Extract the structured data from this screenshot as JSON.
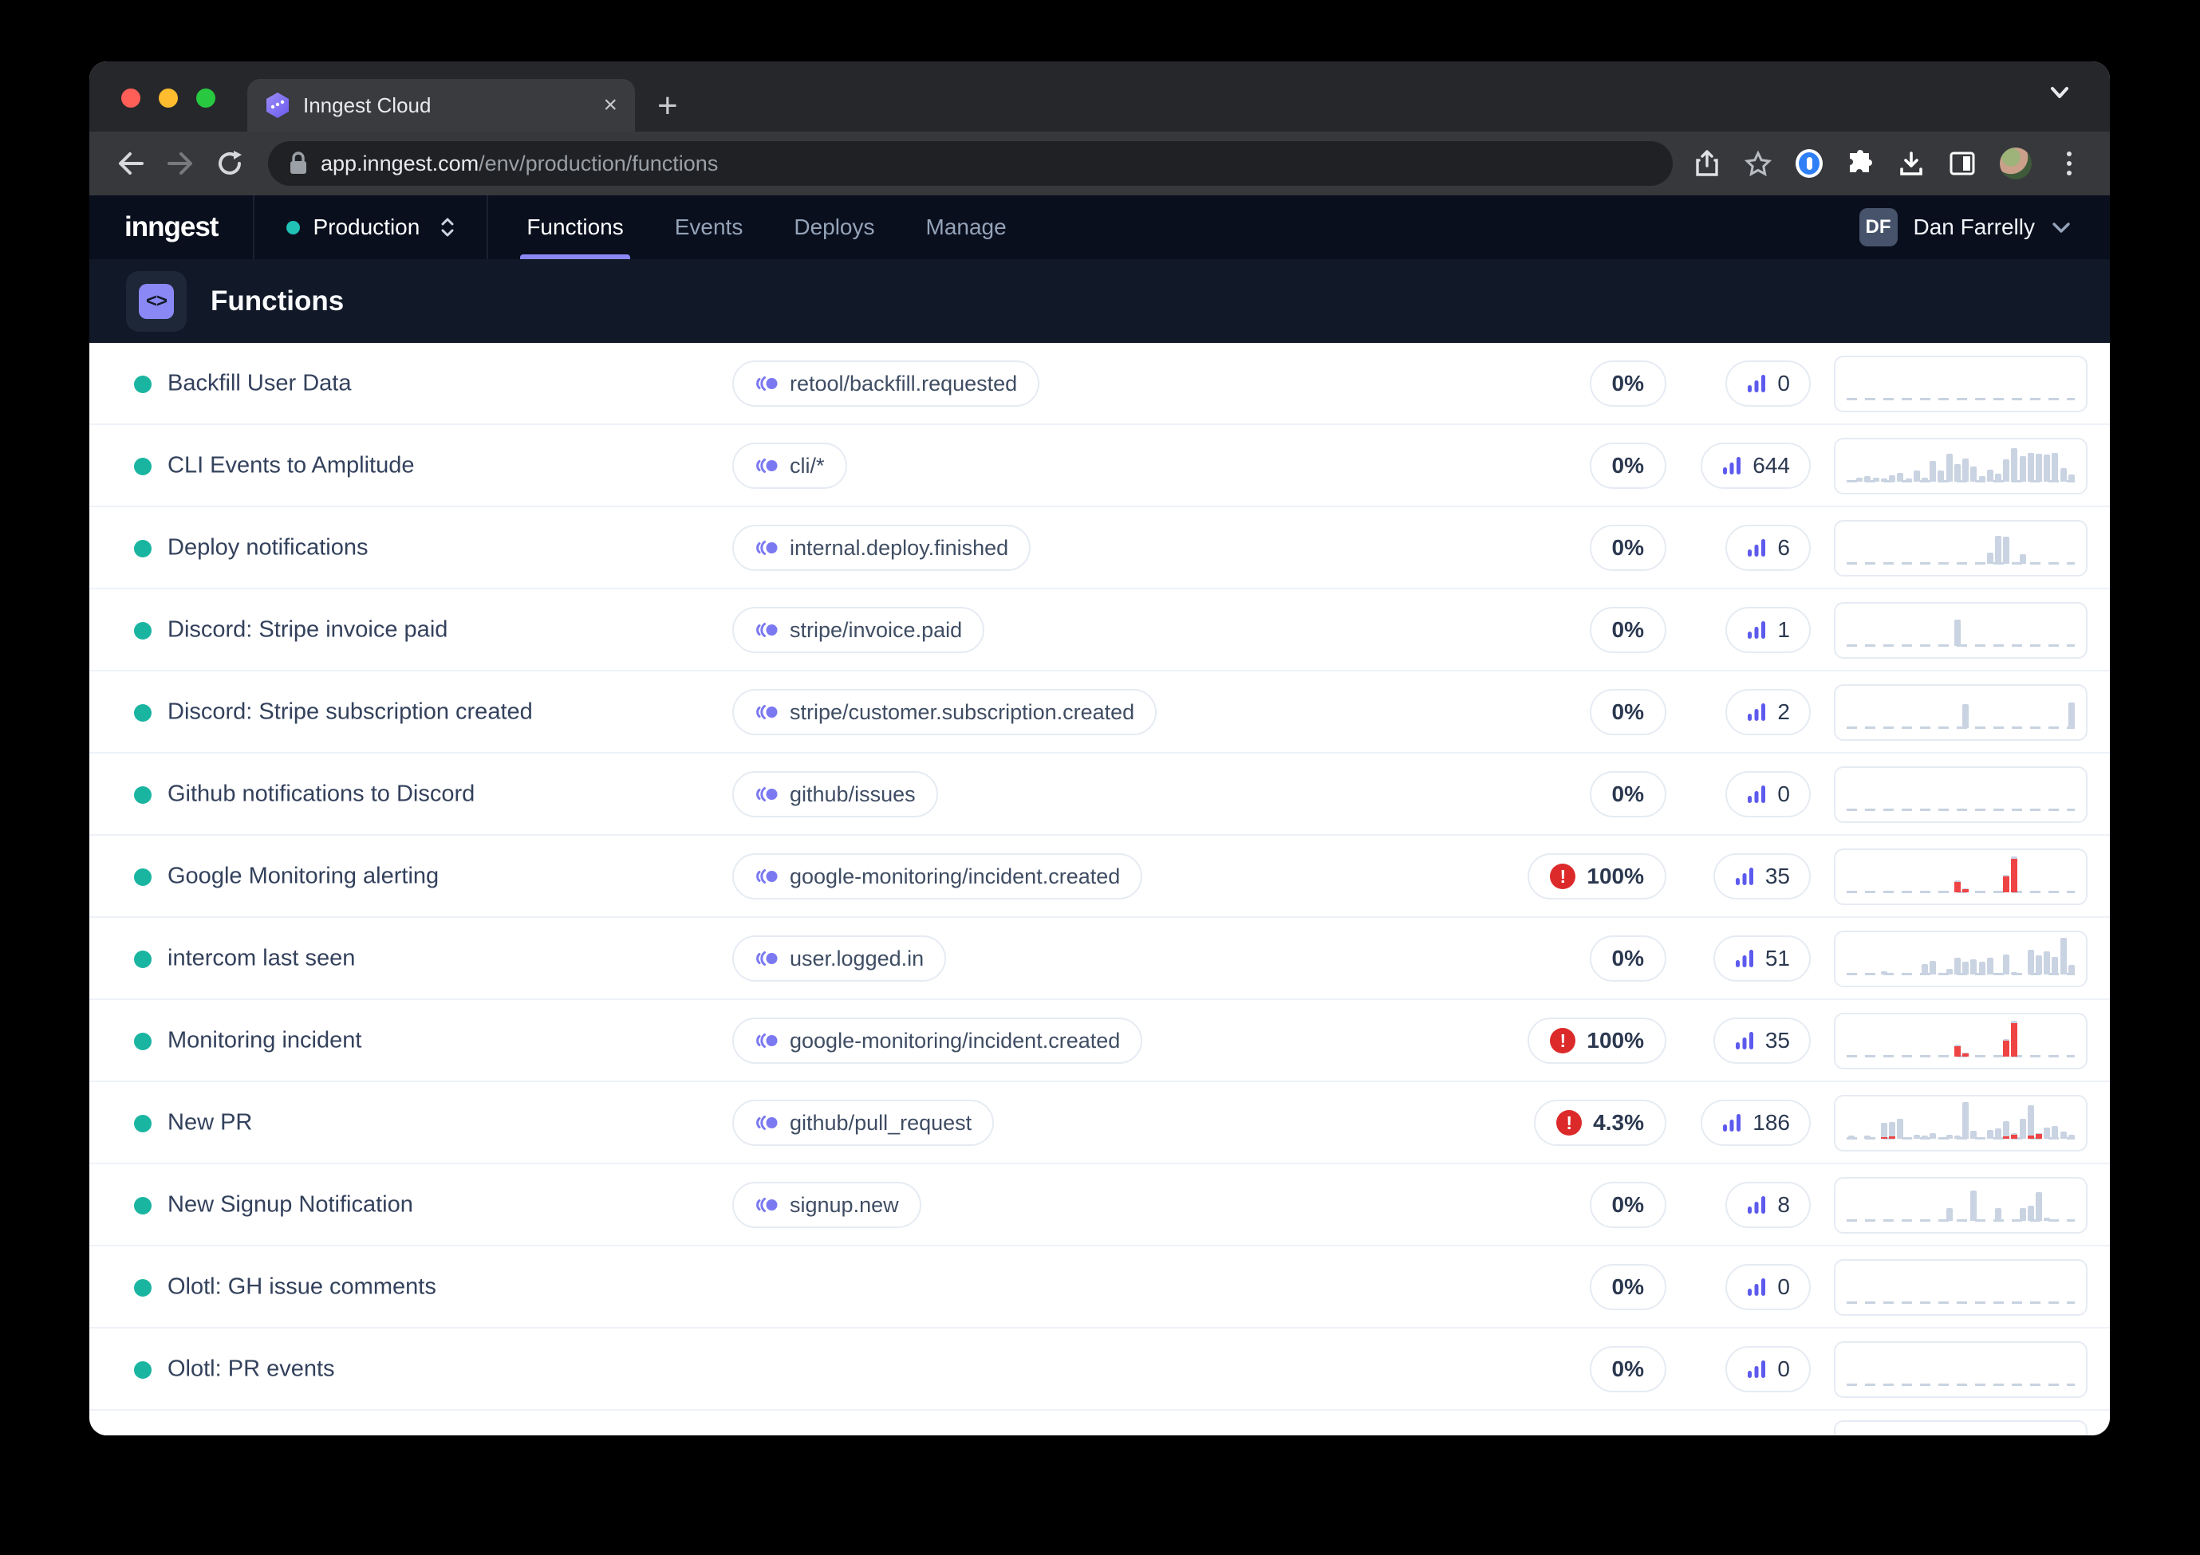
{
  "browser": {
    "tab_title": "Inngest Cloud",
    "url_host": "app.inngest.com",
    "url_path": "/env/production/functions"
  },
  "nav": {
    "logo": "inngest",
    "environment": "Production",
    "tabs": [
      {
        "label": "Functions",
        "active": true
      },
      {
        "label": "Events",
        "active": false
      },
      {
        "label": "Deploys",
        "active": false
      },
      {
        "label": "Manage",
        "active": false
      }
    ],
    "user": {
      "initials": "DF",
      "name": "Dan Farrelly"
    }
  },
  "page": {
    "title": "Functions",
    "icon_glyph": "<>"
  },
  "colors": {
    "accent_purple": "#8b88f5",
    "badge_icon_purple": "#7b79f1",
    "teal_dot": "#1ab5a1",
    "error_red": "#dc2a2a",
    "bar_gray": "#c9d3e2",
    "bar_red": "#ef4444"
  },
  "functions": [
    {
      "name": "Backfill User Data",
      "event": "retool/backfill.requested",
      "failure_rate": "0%",
      "failed": false,
      "count": "0",
      "bars": []
    },
    {
      "name": "CLI Events to Amplitude",
      "event": "cli/*",
      "failure_rate": "0%",
      "failed": false,
      "count": "644",
      "bars": [
        0,
        10,
        14,
        10,
        8,
        16,
        22,
        8,
        30,
        10,
        55,
        30,
        72,
        45,
        60,
        40,
        14,
        32,
        20,
        58,
        88,
        66,
        76,
        72,
        70,
        76,
        36,
        18
      ]
    },
    {
      "name": "Deploy notifications",
      "event": "internal.deploy.finished",
      "failure_rate": "0%",
      "failed": false,
      "count": "6",
      "bars": [
        0,
        0,
        0,
        0,
        0,
        0,
        0,
        0,
        0,
        0,
        0,
        0,
        0,
        0,
        0,
        0,
        0,
        30,
        72,
        70,
        0,
        26,
        0,
        0,
        0,
        0,
        0,
        0
      ]
    },
    {
      "name": "Discord: Stripe invoice paid",
      "event": "stripe/invoice.paid",
      "failure_rate": "0%",
      "failed": false,
      "count": "1",
      "bars": [
        0,
        0,
        0,
        0,
        0,
        0,
        0,
        0,
        0,
        0,
        0,
        0,
        0,
        68,
        0,
        0,
        0,
        0,
        0,
        0,
        0,
        0,
        0,
        0,
        0,
        0,
        0,
        0
      ]
    },
    {
      "name": "Discord: Stripe subscription created",
      "event": "stripe/customer.subscription.created",
      "failure_rate": "0%",
      "failed": false,
      "count": "2",
      "bars": [
        0,
        0,
        0,
        0,
        0,
        0,
        0,
        0,
        0,
        0,
        0,
        0,
        0,
        0,
        62,
        0,
        0,
        0,
        0,
        0,
        0,
        0,
        0,
        0,
        0,
        0,
        0,
        66
      ]
    },
    {
      "name": "Github notifications to Discord",
      "event": "github/issues",
      "failure_rate": "0%",
      "failed": false,
      "count": "0",
      "bars": []
    },
    {
      "name": "Google Monitoring alerting",
      "event": "google-monitoring/incident.created",
      "failure_rate": "100%",
      "failed": true,
      "count": "35",
      "bars": [
        0,
        0,
        0,
        0,
        0,
        0,
        0,
        0,
        0,
        0,
        0,
        0,
        0,
        [
          32,
          28
        ],
        [
          10,
          8
        ],
        0,
        0,
        0,
        0,
        [
          46,
          42
        ],
        [
          95,
          88
        ],
        0,
        0,
        0,
        0,
        0,
        0,
        0
      ]
    },
    {
      "name": "intercom last seen",
      "event": "user.logged.in",
      "failure_rate": "0%",
      "failed": false,
      "count": "51",
      "bars": [
        0,
        0,
        0,
        0,
        8,
        0,
        0,
        0,
        0,
        28,
        36,
        0,
        14,
        44,
        34,
        40,
        34,
        44,
        0,
        52,
        6,
        0,
        64,
        50,
        60,
        45,
        95,
        25
      ]
    },
    {
      "name": "Monitoring incident",
      "event": "google-monitoring/incident.created",
      "failure_rate": "100%",
      "failed": true,
      "count": "35",
      "bars": [
        0,
        0,
        0,
        0,
        0,
        0,
        0,
        0,
        0,
        0,
        0,
        0,
        0,
        [
          32,
          28
        ],
        [
          10,
          8
        ],
        0,
        0,
        0,
        0,
        [
          46,
          42
        ],
        [
          95,
          88
        ],
        0,
        0,
        0,
        0,
        0,
        0,
        0
      ]
    },
    {
      "name": "New PR",
      "event": "github/pull_request",
      "failure_rate": "4.3%",
      "failed": true,
      "count": "186",
      "bars": [
        8,
        0,
        8,
        0,
        [
          42,
          4
        ],
        [
          44,
          6
        ],
        52,
        0,
        10,
        8,
        14,
        0,
        10,
        8,
        95,
        20,
        0,
        22,
        28,
        [
          46,
          6
        ],
        [
          14,
          10
        ],
        52,
        [
          88,
          8
        ],
        [
          14,
          12
        ],
        30,
        34,
        18,
        10
      ]
    },
    {
      "name": "New Signup Notification",
      "event": "signup.new",
      "failure_rate": "0%",
      "failed": false,
      "count": "8",
      "bars": [
        0,
        0,
        0,
        0,
        0,
        0,
        0,
        0,
        0,
        0,
        0,
        0,
        34,
        0,
        0,
        80,
        0,
        0,
        34,
        0,
        0,
        34,
        40,
        75,
        8,
        0,
        0,
        0
      ]
    },
    {
      "name": "Olotl: GH issue comments",
      "event": null,
      "failure_rate": "0%",
      "failed": false,
      "count": "0",
      "bars": []
    },
    {
      "name": "Olotl: PR events",
      "event": null,
      "failure_rate": "0%",
      "failed": false,
      "count": "0",
      "bars": []
    }
  ]
}
